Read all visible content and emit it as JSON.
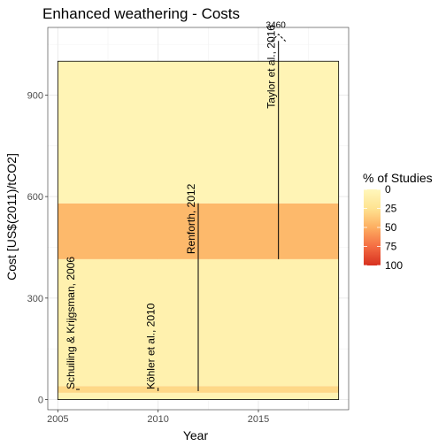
{
  "chart_data": {
    "type": "bar",
    "title": "Enhanced weathering - Costs",
    "xlabel": "Year",
    "ylabel": "Cost [US$(2011)/tCO2]",
    "xlim": [
      2004.5,
      2019.5
    ],
    "ylim": [
      -30,
      1100
    ],
    "xticks": [
      2005,
      2010,
      2015
    ],
    "yticks": [
      0,
      300,
      600,
      900
    ],
    "grid": true,
    "bands": [
      {
        "x_start": 2005,
        "x_end": 2019,
        "y_start": 0,
        "y_end": 20,
        "percent": 5
      },
      {
        "x_start": 2005,
        "x_end": 2019,
        "y_start": 20,
        "y_end": 40,
        "percent": 30
      },
      {
        "x_start": 2005,
        "x_end": 2019,
        "y_start": 40,
        "y_end": 415,
        "percent": 8
      },
      {
        "x_start": 2005,
        "x_end": 2019,
        "y_start": 415,
        "y_end": 580,
        "percent": 45
      },
      {
        "x_start": 2005,
        "x_end": 2019,
        "y_start": 580,
        "y_end": 1000,
        "percent": 4
      }
    ],
    "studies": [
      {
        "label": "Schuiling & Krijgsman, 2006",
        "year": 2006,
        "y_low": 30,
        "y_high": 30,
        "label_y": 30
      },
      {
        "label": "Köhler et al., 2010",
        "year": 2010,
        "y_low": 25,
        "y_high": 35,
        "label_y": 30
      },
      {
        "label": "Renforth, 2012",
        "year": 2012,
        "y_low": 25,
        "y_high": 580,
        "label_y": 430
      },
      {
        "label": "Taylor et al., 2016",
        "year": 2016,
        "y_low": 415,
        "y_high": 1060,
        "label_y": 860
      }
    ],
    "annotations": [
      {
        "text": "3460",
        "year": 2016,
        "y": 1080
      }
    ],
    "legend": {
      "title": "% of Studies",
      "placement": "right",
      "ticks": [
        "0",
        "25",
        "50",
        "75",
        "100"
      ],
      "colors": [
        "#fff7bc",
        "#fee391",
        "#fdae61",
        "#f46d43",
        "#d7301f"
      ]
    }
  }
}
